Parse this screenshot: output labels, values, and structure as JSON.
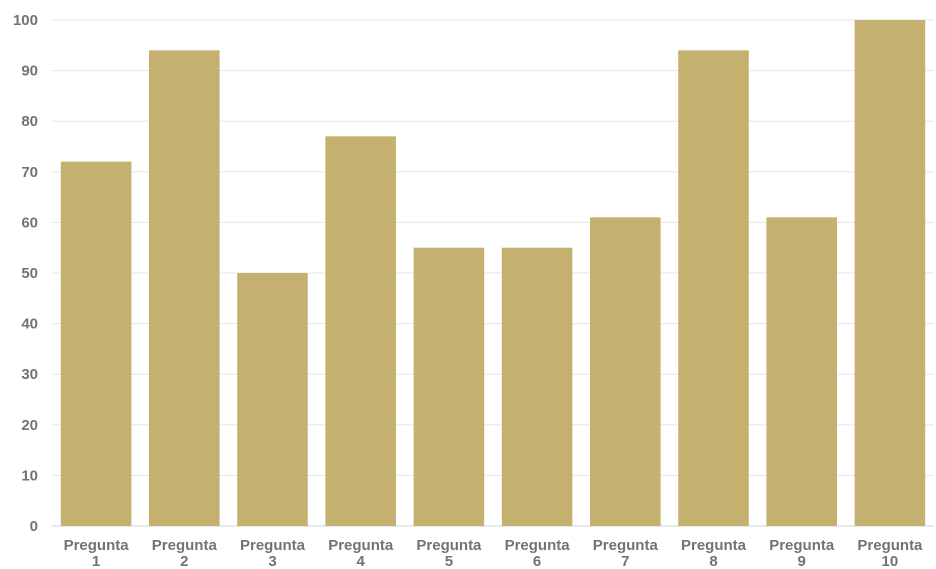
{
  "chart_data": {
    "type": "bar",
    "categories": [
      [
        "Pregunta",
        "1"
      ],
      [
        "Pregunta",
        "2"
      ],
      [
        "Pregunta",
        "3"
      ],
      [
        "Pregunta",
        "4"
      ],
      [
        "Pregunta",
        "5"
      ],
      [
        "Pregunta",
        "6"
      ],
      [
        "Pregunta",
        "7"
      ],
      [
        "Pregunta",
        "8"
      ],
      [
        "Pregunta",
        "9"
      ],
      [
        "Pregunta",
        "10"
      ]
    ],
    "values": [
      72,
      94,
      50,
      77,
      55,
      55,
      61,
      94,
      61,
      100
    ],
    "ylim": [
      0,
      100
    ],
    "yticks": [
      "0",
      "10",
      "20",
      "30",
      "40",
      "50",
      "60",
      "70",
      "80",
      "90",
      "100"
    ],
    "grid": true,
    "bar_color": "#c4b06f"
  }
}
